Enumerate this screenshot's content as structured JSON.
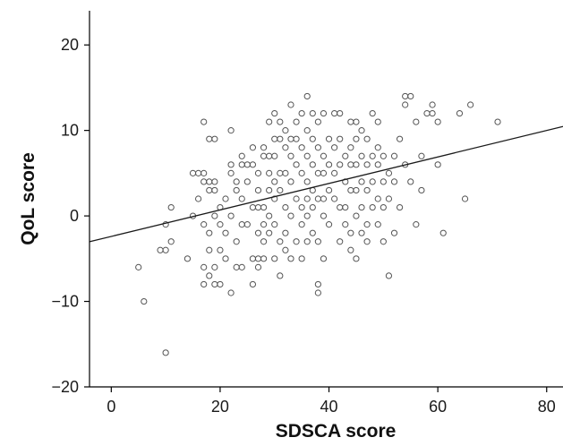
{
  "chart_data": {
    "type": "scatter",
    "title": "",
    "xlabel": "SDSCA score",
    "ylabel": "QoL score",
    "xlim": [
      -4,
      83
    ],
    "ylim": [
      -20,
      24
    ],
    "x_ticks": [
      0,
      20,
      40,
      60,
      80
    ],
    "y_ticks": [
      -20,
      -10,
      0,
      10,
      20
    ],
    "x_tick_labels": [
      "0",
      "20",
      "40",
      "60",
      "80"
    ],
    "y_tick_labels": [
      "−20",
      "−10",
      "0",
      "10",
      "20"
    ],
    "grid": false,
    "legend": "none",
    "colors": {
      "points": "#555555",
      "line": "#1a1a1a",
      "axis": "#000000"
    },
    "fit_line": {
      "intercept": -2.4,
      "slope": 0.155
    },
    "points": [
      [
        5,
        -6
      ],
      [
        6,
        -10
      ],
      [
        9,
        -4
      ],
      [
        10,
        -16
      ],
      [
        10,
        -4
      ],
      [
        10,
        -1
      ],
      [
        11,
        1
      ],
      [
        11,
        -3
      ],
      [
        14,
        -5
      ],
      [
        15,
        0
      ],
      [
        15,
        5
      ],
      [
        16,
        5
      ],
      [
        16,
        2
      ],
      [
        17,
        11
      ],
      [
        17,
        5
      ],
      [
        17,
        4
      ],
      [
        17,
        -1
      ],
      [
        17,
        -6
      ],
      [
        17,
        -8
      ],
      [
        18,
        9
      ],
      [
        18,
        4
      ],
      [
        18,
        3
      ],
      [
        18,
        -2
      ],
      [
        18,
        -4
      ],
      [
        18,
        -7
      ],
      [
        19,
        3
      ],
      [
        19,
        0
      ],
      [
        19,
        -6
      ],
      [
        19,
        9
      ],
      [
        19,
        4
      ],
      [
        19,
        -8
      ],
      [
        20,
        1
      ],
      [
        20,
        -1
      ],
      [
        20,
        -4
      ],
      [
        20,
        -8
      ],
      [
        21,
        -5
      ],
      [
        21,
        2
      ],
      [
        21,
        -2
      ],
      [
        22,
        10
      ],
      [
        22,
        6
      ],
      [
        22,
        5
      ],
      [
        22,
        0
      ],
      [
        22,
        -9
      ],
      [
        23,
        4
      ],
      [
        23,
        3
      ],
      [
        23,
        -3
      ],
      [
        23,
        -6
      ],
      [
        24,
        7
      ],
      [
        24,
        6
      ],
      [
        24,
        2
      ],
      [
        24,
        -1
      ],
      [
        24,
        -6
      ],
      [
        25,
        6
      ],
      [
        25,
        4
      ],
      [
        25,
        -1
      ],
      [
        26,
        8
      ],
      [
        26,
        6
      ],
      [
        26,
        1
      ],
      [
        26,
        -5
      ],
      [
        26,
        -8
      ],
      [
        27,
        5
      ],
      [
        27,
        3
      ],
      [
        27,
        1
      ],
      [
        27,
        -2
      ],
      [
        27,
        -5
      ],
      [
        27,
        -6
      ],
      [
        28,
        8
      ],
      [
        28,
        7
      ],
      [
        28,
        1
      ],
      [
        28,
        -1
      ],
      [
        28,
        -3
      ],
      [
        28,
        -5
      ],
      [
        29,
        11
      ],
      [
        29,
        7
      ],
      [
        29,
        5
      ],
      [
        29,
        3
      ],
      [
        29,
        0
      ],
      [
        29,
        -2
      ],
      [
        30,
        12
      ],
      [
        30,
        9
      ],
      [
        30,
        7
      ],
      [
        30,
        4
      ],
      [
        30,
        2
      ],
      [
        30,
        -1
      ],
      [
        30,
        -5
      ],
      [
        31,
        11
      ],
      [
        31,
        9
      ],
      [
        31,
        5
      ],
      [
        31,
        3
      ],
      [
        31,
        -3
      ],
      [
        31,
        -7
      ],
      [
        32,
        10
      ],
      [
        32,
        8
      ],
      [
        32,
        5
      ],
      [
        32,
        1
      ],
      [
        32,
        -2
      ],
      [
        32,
        -4
      ],
      [
        33,
        13
      ],
      [
        33,
        9
      ],
      [
        33,
        7
      ],
      [
        33,
        4
      ],
      [
        33,
        0
      ],
      [
        33,
        -5
      ],
      [
        34,
        11
      ],
      [
        34,
        9
      ],
      [
        34,
        6
      ],
      [
        34,
        2
      ],
      [
        34,
        -3
      ],
      [
        35,
        12
      ],
      [
        35,
        8
      ],
      [
        35,
        5
      ],
      [
        35,
        1
      ],
      [
        35,
        -1
      ],
      [
        35,
        -5
      ],
      [
        36,
        14
      ],
      [
        36,
        10
      ],
      [
        36,
        7
      ],
      [
        36,
        4
      ],
      [
        36,
        2
      ],
      [
        36,
        0
      ],
      [
        36,
        -3
      ],
      [
        37,
        12
      ],
      [
        37,
        9
      ],
      [
        37,
        6
      ],
      [
        37,
        3
      ],
      [
        37,
        1
      ],
      [
        37,
        -2
      ],
      [
        38,
        11
      ],
      [
        38,
        8
      ],
      [
        38,
        5
      ],
      [
        38,
        2
      ],
      [
        38,
        -3
      ],
      [
        38,
        -8
      ],
      [
        38,
        -9
      ],
      [
        39,
        12
      ],
      [
        39,
        7
      ],
      [
        39,
        5
      ],
      [
        39,
        2
      ],
      [
        39,
        0
      ],
      [
        39,
        -5
      ],
      [
        40,
        9
      ],
      [
        40,
        6
      ],
      [
        40,
        3
      ],
      [
        40,
        -1
      ],
      [
        41,
        12
      ],
      [
        41,
        8
      ],
      [
        41,
        5
      ],
      [
        41,
        2
      ],
      [
        42,
        12
      ],
      [
        42,
        9
      ],
      [
        42,
        6
      ],
      [
        42,
        1
      ],
      [
        42,
        -3
      ],
      [
        43,
        7
      ],
      [
        43,
        4
      ],
      [
        43,
        1
      ],
      [
        43,
        -1
      ],
      [
        44,
        11
      ],
      [
        44,
        8
      ],
      [
        44,
        6
      ],
      [
        44,
        3
      ],
      [
        44,
        -2
      ],
      [
        44,
        -4
      ],
      [
        45,
        11
      ],
      [
        45,
        9
      ],
      [
        45,
        6
      ],
      [
        45,
        3
      ],
      [
        45,
        0
      ],
      [
        45,
        -5
      ],
      [
        46,
        10
      ],
      [
        46,
        7
      ],
      [
        46,
        4
      ],
      [
        46,
        1
      ],
      [
        46,
        -2
      ],
      [
        47,
        9
      ],
      [
        47,
        6
      ],
      [
        47,
        3
      ],
      [
        47,
        -1
      ],
      [
        47,
        -3
      ],
      [
        48,
        12
      ],
      [
        48,
        7
      ],
      [
        48,
        4
      ],
      [
        48,
        1
      ],
      [
        49,
        11
      ],
      [
        49,
        8
      ],
      [
        49,
        6
      ],
      [
        49,
        2
      ],
      [
        49,
        -1
      ],
      [
        50,
        7
      ],
      [
        50,
        4
      ],
      [
        50,
        1
      ],
      [
        50,
        -3
      ],
      [
        51,
        -7
      ],
      [
        51,
        5
      ],
      [
        51,
        2
      ],
      [
        52,
        7
      ],
      [
        52,
        4
      ],
      [
        52,
        -2
      ],
      [
        53,
        9
      ],
      [
        53,
        1
      ],
      [
        54,
        14
      ],
      [
        54,
        13
      ],
      [
        54,
        6
      ],
      [
        55,
        14
      ],
      [
        55,
        4
      ],
      [
        56,
        11
      ],
      [
        56,
        -1
      ],
      [
        57,
        7
      ],
      [
        57,
        3
      ],
      [
        58,
        12
      ],
      [
        59,
        13
      ],
      [
        59,
        12
      ],
      [
        60,
        11
      ],
      [
        60,
        6
      ],
      [
        61,
        -2
      ],
      [
        64,
        12
      ],
      [
        65,
        2
      ],
      [
        66,
        13
      ],
      [
        71,
        11
      ]
    ]
  }
}
